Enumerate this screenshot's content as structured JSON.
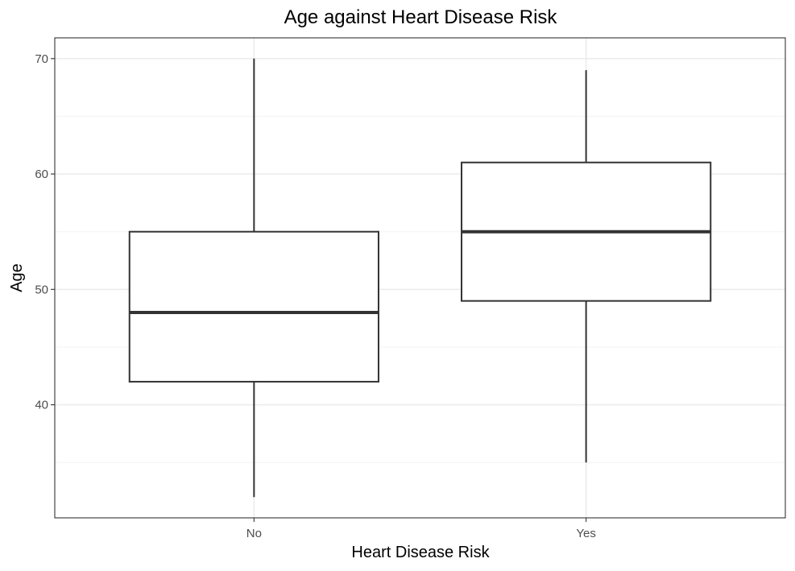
{
  "chart_data": {
    "type": "boxplot",
    "title": "Age against Heart Disease Risk",
    "xlabel": "Heart Disease Risk",
    "ylabel": "Age",
    "categories": [
      "No",
      "Yes"
    ],
    "boxes": [
      {
        "category": "No",
        "whisker_low": 32,
        "q1": 42,
        "median": 48,
        "q3": 55,
        "whisker_high": 70
      },
      {
        "category": "Yes",
        "whisker_low": 35,
        "q1": 49,
        "median": 55,
        "q3": 61,
        "whisker_high": 69
      }
    ],
    "ylim": [
      30.2,
      71.8
    ],
    "yticks": [
      40,
      50,
      60,
      70
    ],
    "yticks_minor": [
      35,
      45,
      55,
      65
    ],
    "grid": true,
    "colors": {
      "box_line": "#333333",
      "box_fill": "#ffffff",
      "grid": "#ebebeb",
      "panel_border": "#333333"
    }
  }
}
